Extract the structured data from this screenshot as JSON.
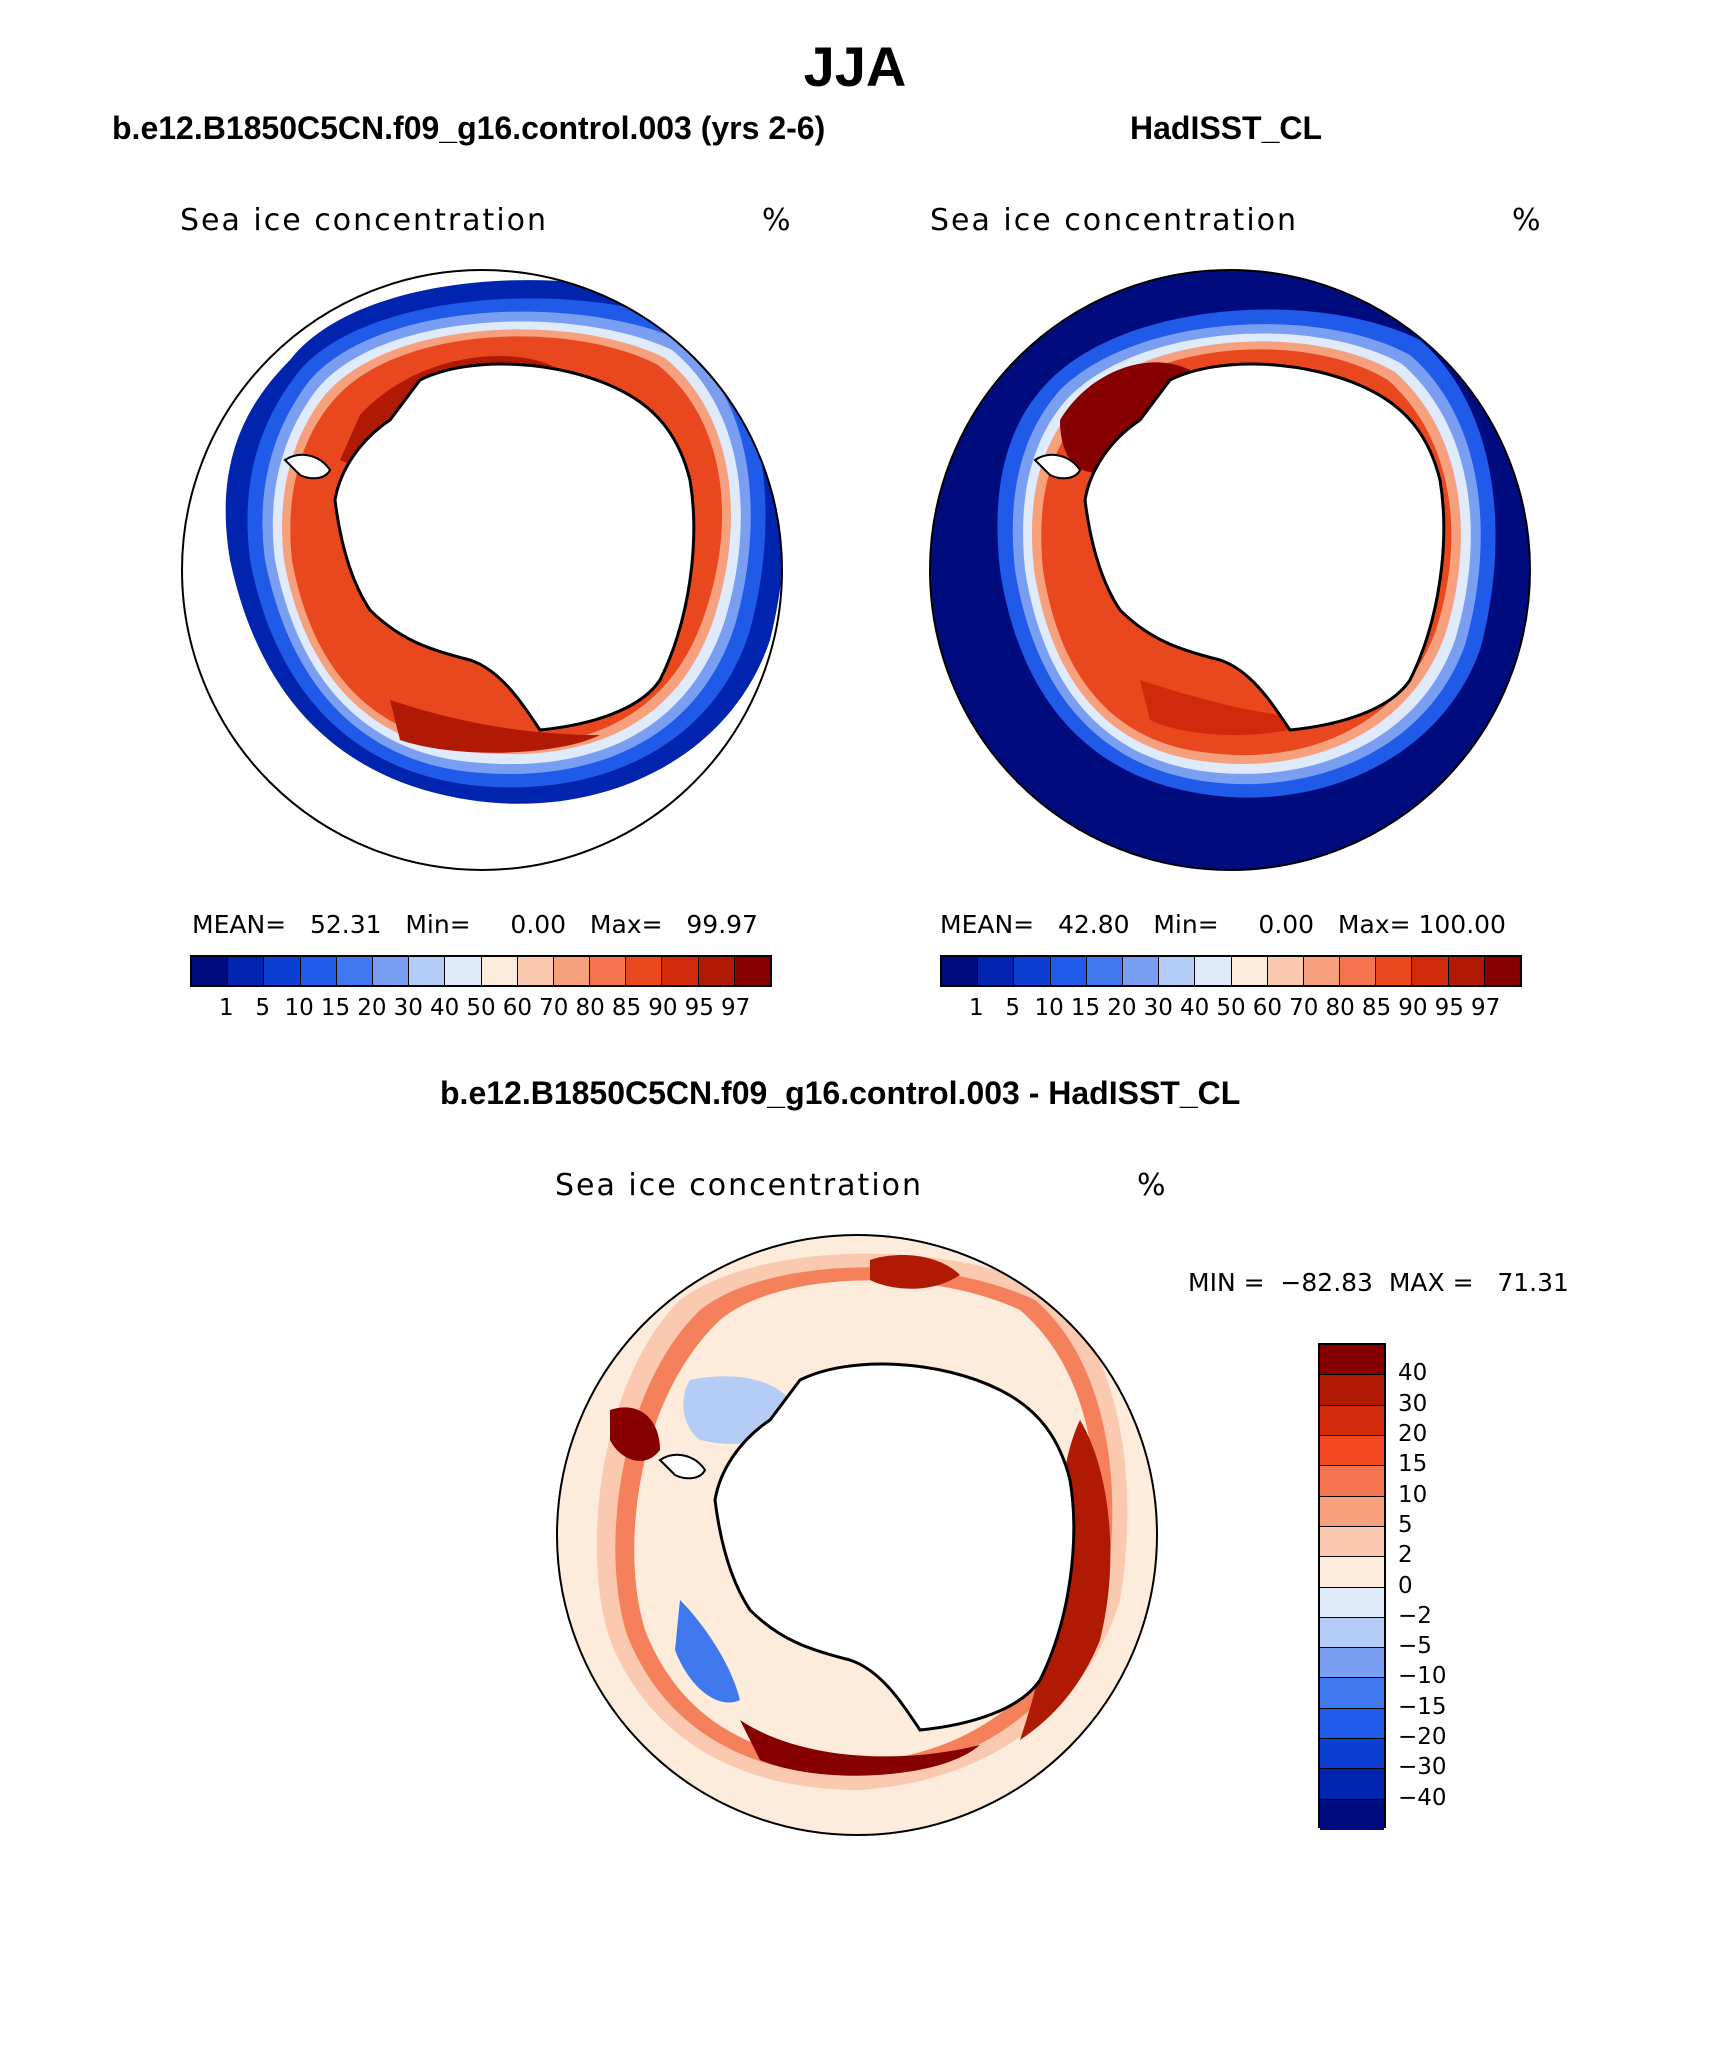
{
  "figure": {
    "title": "JJA",
    "left_title": "b.e12.B1850C5CN.f09_g16.control.003 (yrs 2-6)",
    "right_title": "HadISST_CL",
    "diff_title": "b.e12.B1850C5CN.f09_g16.control.003 - HadISST_CL"
  },
  "panels": {
    "model": {
      "label": "Sea ice concentration",
      "units": "%",
      "stats": "MEAN=   52.31   Min=     0.00   Max=   99.97"
    },
    "obs": {
      "label": "Sea ice concentration",
      "units": "%",
      "stats": "MEAN=   42.80   Min=     0.00   Max= 100.00"
    },
    "diff": {
      "label": "Sea ice concentration",
      "units": "%",
      "stats": "MIN =  −82.83  MAX =   71.31"
    }
  },
  "colorbars": {
    "concentration": {
      "ticks": [
        "1",
        "5",
        "10",
        "15",
        "20",
        "30",
        "40",
        "50",
        "60",
        "70",
        "80",
        "85",
        "90",
        "95",
        "97"
      ],
      "colors": [
        "#000c7e",
        "#0024ae",
        "#0b3fd2",
        "#1f5ae8",
        "#4079ee",
        "#7a9ff2",
        "#b5ccf7",
        "#dfeafb",
        "#fdebdc",
        "#fbc9b0",
        "#f7a07e",
        "#f3744e",
        "#e9481f",
        "#d12a0b",
        "#b01a04",
        "#870000"
      ]
    },
    "difference": {
      "ticks": [
        "40",
        "30",
        "20",
        "15",
        "10",
        "5",
        "2",
        "0",
        "−2",
        "−5",
        "−10",
        "−15",
        "−20",
        "−30",
        "−40"
      ],
      "colors": [
        "#870000",
        "#b01a04",
        "#d12a0b",
        "#f3481f",
        "#f3744e",
        "#f7a07e",
        "#fbc9b0",
        "#fdebdc",
        "#dfeafb",
        "#b5ccf7",
        "#7a9ff2",
        "#4079ee",
        "#1f5ae8",
        "#0b3fd2",
        "#0024ae",
        "#000c7e"
      ]
    }
  }
}
